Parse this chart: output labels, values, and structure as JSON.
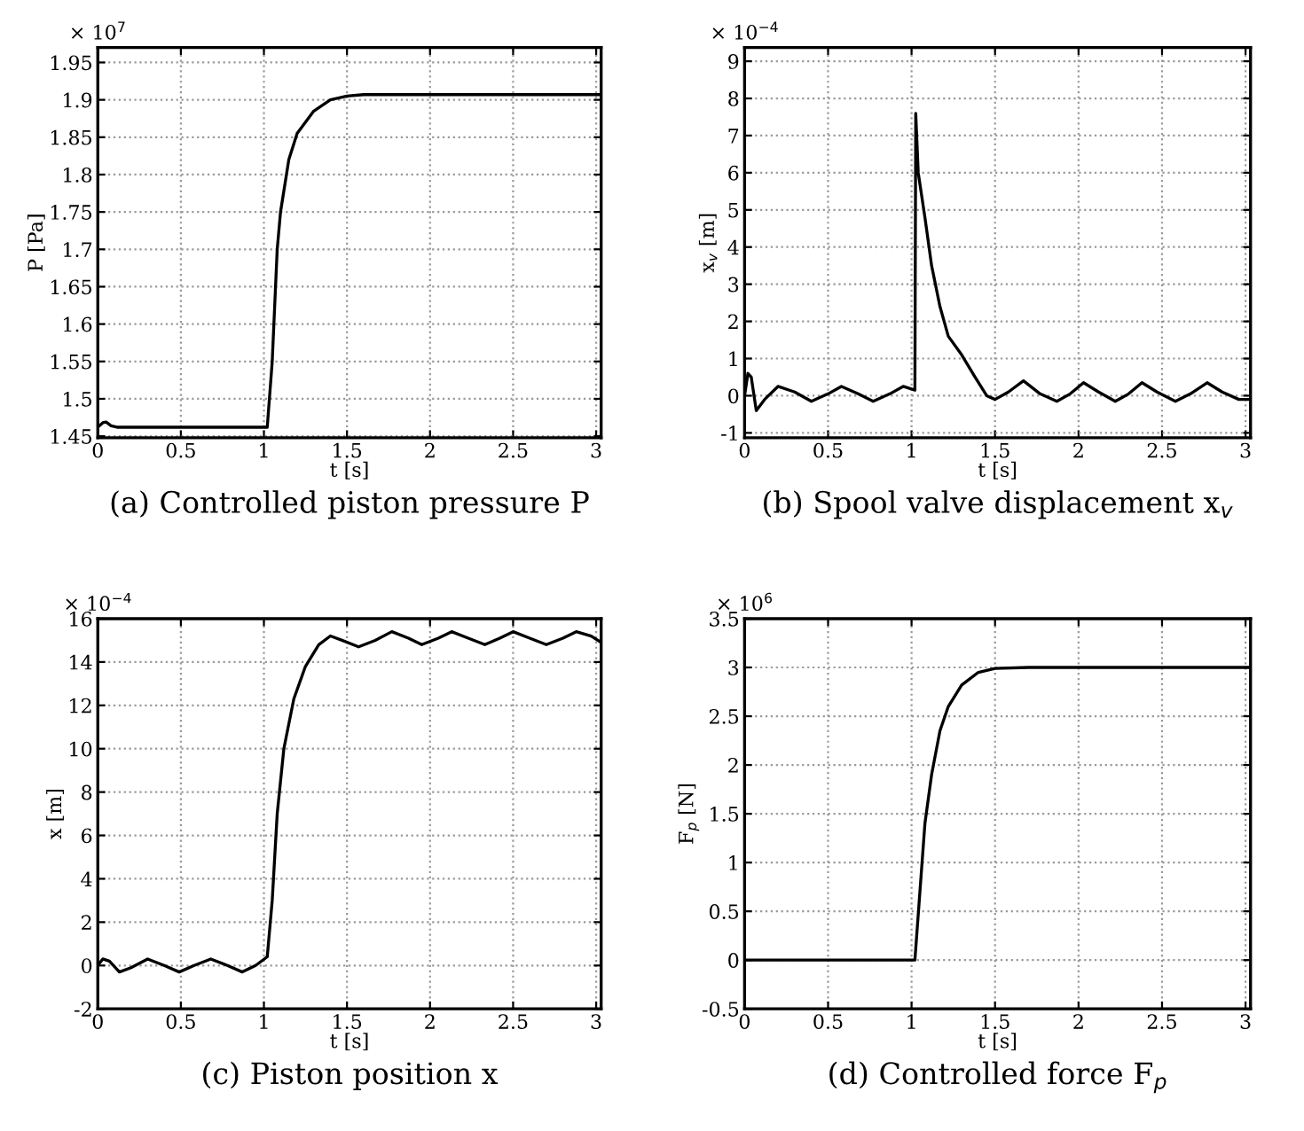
{
  "chart_data": [
    {
      "type": "line",
      "title": "(a) Controlled piston pressure P",
      "xlabel": "t [s]",
      "ylabel": "P [Pa]",
      "annotations": [
        "× 10$^{7}$"
      ],
      "grid": true,
      "xlim": [
        0,
        3.03
      ],
      "xticks": [
        0,
        0.5,
        1,
        1.5,
        2,
        2.5,
        3
      ],
      "ylim": [
        1.448,
        1.97
      ],
      "yticks": [
        1.45,
        1.5,
        1.55,
        1.6,
        1.65,
        1.7,
        1.75,
        1.8,
        1.85,
        1.9,
        1.95
      ],
      "x": [
        0,
        0.03,
        0.05,
        0.08,
        0.12,
        1.02,
        1.05,
        1.08,
        1.1,
        1.15,
        1.2,
        1.3,
        1.4,
        1.5,
        1.6,
        3.03
      ],
      "series": [
        {
          "color": "#000000",
          "values": [
            1.462,
            1.468,
            1.469,
            1.464,
            1.462,
            1.462,
            1.55,
            1.7,
            1.75,
            1.82,
            1.855,
            1.885,
            1.9,
            1.905,
            1.907,
            1.907
          ]
        }
      ]
    },
    {
      "type": "line",
      "title": "(b) Spool valve displacement x$_{v}$",
      "xlabel": "t [s]",
      "ylabel": "x$_{v}$ [m]",
      "annotations": [
        "× 10$^{−4}$"
      ],
      "grid": true,
      "xlim": [
        0,
        3.03
      ],
      "xticks": [
        0,
        0.5,
        1,
        1.5,
        2,
        2.5,
        3
      ],
      "ylim": [
        -1.13,
        9.37
      ],
      "yticks": [
        -1,
        0,
        1,
        2,
        3,
        4,
        5,
        6,
        7,
        8,
        9
      ],
      "x": [
        0,
        0.02,
        0.04,
        0.07,
        0.12,
        0.2,
        0.3,
        0.4,
        0.5,
        0.58,
        0.68,
        0.77,
        0.87,
        0.95,
        1.02,
        1.025,
        1.04,
        1.08,
        1.12,
        1.17,
        1.22,
        1.3,
        1.38,
        1.45,
        1.5,
        1.58,
        1.67,
        1.77,
        1.87,
        1.95,
        2.03,
        2.12,
        2.22,
        2.3,
        2.38,
        2.47,
        2.58,
        2.67,
        2.77,
        2.86,
        2.96,
        3.03
      ],
      "series": [
        {
          "color": "#000000",
          "values": [
            0,
            0.6,
            0.5,
            -0.4,
            -0.1,
            0.25,
            0.1,
            -0.15,
            0.05,
            0.25,
            0.05,
            -0.15,
            0.05,
            0.25,
            0.15,
            7.6,
            6,
            4.8,
            3.5,
            2.4,
            1.6,
            1.1,
            0.5,
            0,
            -0.1,
            0.1,
            0.4,
            0.05,
            -0.15,
            0.05,
            0.35,
            0.1,
            -0.15,
            0.05,
            0.35,
            0.1,
            -0.15,
            0.05,
            0.35,
            0.1,
            -0.1,
            -0.1
          ]
        }
      ]
    },
    {
      "type": "line",
      "title": "(c) Piston position x",
      "xlabel": "t [s]",
      "ylabel": "x [m]",
      "annotations": [
        "× 10$^{−4}$"
      ],
      "grid": true,
      "xlim": [
        0,
        3.03
      ],
      "xticks": [
        0,
        0.5,
        1,
        1.5,
        2,
        2.5,
        3
      ],
      "ylim": [
        -2,
        16
      ],
      "yticks": [
        -2,
        0,
        2,
        4,
        6,
        8,
        10,
        12,
        14,
        16
      ],
      "x": [
        0,
        0.03,
        0.07,
        0.13,
        0.2,
        0.3,
        0.4,
        0.49,
        0.58,
        0.68,
        0.78,
        0.87,
        0.95,
        1.02,
        1.05,
        1.08,
        1.12,
        1.18,
        1.25,
        1.33,
        1.4,
        1.47,
        1.57,
        1.67,
        1.77,
        1.87,
        1.95,
        2.05,
        2.13,
        2.23,
        2.33,
        2.42,
        2.5,
        2.6,
        2.7,
        2.8,
        2.88,
        2.97,
        3.03
      ],
      "series": [
        {
          "color": "#000000",
          "values": [
            0,
            0.3,
            0.2,
            -0.3,
            -0.1,
            0.3,
            0,
            -0.3,
            0,
            0.3,
            0,
            -0.3,
            0,
            0.4,
            3,
            7,
            10,
            12.3,
            13.8,
            14.8,
            15.2,
            15.0,
            14.7,
            15.0,
            15.4,
            15.1,
            14.8,
            15.1,
            15.4,
            15.1,
            14.8,
            15.1,
            15.4,
            15.1,
            14.8,
            15.1,
            15.4,
            15.2,
            14.9
          ]
        }
      ]
    },
    {
      "type": "line",
      "title": "(d) Controlled force F$_{p}$",
      "xlabel": "t [s]",
      "ylabel": "F$_{p}$ [N]",
      "annotations": [
        "× 10$^{6}$"
      ],
      "grid": true,
      "xlim": [
        0,
        3.03
      ],
      "xticks": [
        0,
        0.5,
        1,
        1.5,
        2,
        2.5,
        3
      ],
      "ylim": [
        -0.5,
        3.5
      ],
      "yticks": [
        -0.5,
        0,
        0.5,
        1,
        1.5,
        2,
        2.5,
        3,
        3.5
      ],
      "x": [
        0,
        1.02,
        1.05,
        1.08,
        1.12,
        1.17,
        1.22,
        1.3,
        1.4,
        1.5,
        1.7,
        3.03
      ],
      "series": [
        {
          "color": "#000000",
          "values": [
            0,
            0,
            0.7,
            1.4,
            1.9,
            2.35,
            2.6,
            2.82,
            2.95,
            2.99,
            3.0,
            3.0
          ]
        }
      ]
    }
  ]
}
